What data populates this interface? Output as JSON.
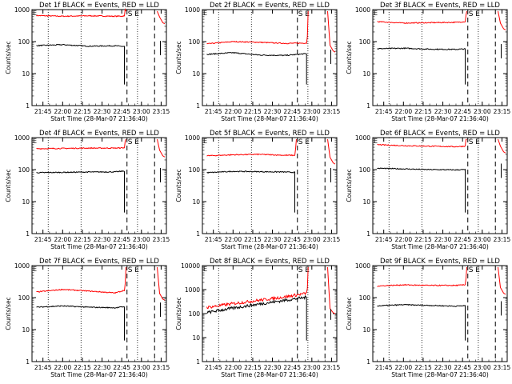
{
  "figure": {
    "xlabel": "Start Time (28-Mar-07 21:36:40)",
    "ylabel": "Counts/sec",
    "xticks": [
      "21:45",
      "22:00",
      "22:15",
      "22:30",
      "22:45",
      "23:00",
      "23:15"
    ],
    "yticks": [
      "1",
      "10",
      "100",
      "1000"
    ],
    "yticks_large": [
      "1",
      "10",
      "100",
      "1000",
      "10000"
    ],
    "markers": [
      "S",
      "E"
    ],
    "series_colors": {
      "events": "#000000",
      "lld": "#ff0000"
    }
  },
  "chart_data": [
    {
      "type": "line",
      "title": "Det 1f BLACK = Events, RED = LLD",
      "ylabel": "Counts/sec",
      "xlabel": "Start Time (28-Mar-07 21:36:40)",
      "scale": "log",
      "ylim": [
        1,
        1000
      ],
      "series": [
        {
          "name": "LLD",
          "x": [
            "21:40",
            "22:00",
            "22:20",
            "22:40",
            "22:47"
          ],
          "values": [
            650,
            620,
            640,
            620,
            630
          ]
        },
        {
          "name": "Events",
          "x": [
            "21:40",
            "22:00",
            "22:20",
            "22:40",
            "22:47"
          ],
          "values": [
            75,
            80,
            72,
            74,
            70
          ]
        }
      ]
    },
    {
      "type": "line",
      "title": "Det 2f BLACK = Events, RED = LLD",
      "ylabel": "Counts/sec",
      "xlabel": "Start Time (28-Mar-07 21:36:40)",
      "scale": "log",
      "ylim": [
        1,
        1000
      ],
      "series": [
        {
          "name": "LLD",
          "x": [
            "21:40",
            "22:00",
            "22:20",
            "22:40",
            "22:56"
          ],
          "values": [
            85,
            100,
            95,
            88,
            90
          ]
        },
        {
          "name": "Events",
          "x": [
            "21:40",
            "22:00",
            "22:20",
            "22:40",
            "22:56"
          ],
          "values": [
            40,
            45,
            38,
            37,
            42
          ]
        }
      ]
    },
    {
      "type": "line",
      "title": "Det 3f BLACK = Events, RED = LLD",
      "ylabel": "Counts/sec",
      "xlabel": "Start Time (28-Mar-07 21:36:40)",
      "scale": "log",
      "ylim": [
        1,
        1000
      ],
      "series": [
        {
          "name": "LLD",
          "x": [
            "21:40",
            "22:00",
            "22:20",
            "22:40",
            "22:47"
          ],
          "values": [
            420,
            380,
            390,
            400,
            420
          ]
        },
        {
          "name": "Events",
          "x": [
            "21:40",
            "22:00",
            "22:20",
            "22:40",
            "22:47"
          ],
          "values": [
            60,
            62,
            58,
            57,
            59
          ]
        }
      ]
    },
    {
      "type": "line",
      "title": "Det 4f BLACK = Events, RED = LLD",
      "ylabel": "Counts/sec",
      "xlabel": "Start Time (28-Mar-07 21:36:40)",
      "scale": "log",
      "ylim": [
        1,
        1000
      ],
      "series": [
        {
          "name": "LLD",
          "x": [
            "21:40",
            "22:00",
            "22:20",
            "22:40",
            "22:47"
          ],
          "values": [
            450,
            460,
            470,
            470,
            480
          ]
        },
        {
          "name": "Events",
          "x": [
            "21:40",
            "22:00",
            "22:20",
            "22:40",
            "22:47"
          ],
          "values": [
            80,
            82,
            84,
            85,
            90
          ]
        }
      ]
    },
    {
      "type": "line",
      "title": "Det 5f BLACK = Events, RED = LLD",
      "ylabel": "Counts/sec",
      "xlabel": "Start Time (28-Mar-07 21:36:40)",
      "scale": "log",
      "ylim": [
        1,
        1000
      ],
      "series": [
        {
          "name": "LLD",
          "x": [
            "21:40",
            "22:00",
            "22:20",
            "22:40",
            "22:47"
          ],
          "values": [
            270,
            290,
            300,
            280,
            280
          ]
        },
        {
          "name": "Events",
          "x": [
            "21:40",
            "22:00",
            "22:20",
            "22:40",
            "22:47"
          ],
          "values": [
            80,
            88,
            86,
            84,
            82
          ]
        }
      ]
    },
    {
      "type": "line",
      "title": "Det 6f BLACK = Events, RED = LLD",
      "ylabel": "Counts/sec",
      "xlabel": "Start Time (28-Mar-07 21:36:40)",
      "scale": "log",
      "ylim": [
        1,
        1000
      ],
      "series": [
        {
          "name": "LLD",
          "x": [
            "21:40",
            "22:00",
            "22:20",
            "22:40",
            "22:47"
          ],
          "values": [
            600,
            560,
            540,
            520,
            540
          ]
        },
        {
          "name": "Events",
          "x": [
            "21:40",
            "22:00",
            "22:20",
            "22:40",
            "22:47"
          ],
          "values": [
            110,
            105,
            100,
            98,
            100
          ]
        }
      ]
    },
    {
      "type": "line",
      "title": "Det 7f BLACK = Events, RED = LLD",
      "ylabel": "Counts/sec",
      "xlabel": "Start Time (28-Mar-07 21:36:40)",
      "scale": "log",
      "ylim": [
        1,
        1000
      ],
      "series": [
        {
          "name": "LLD",
          "x": [
            "21:40",
            "22:00",
            "22:20",
            "22:40",
            "22:47"
          ],
          "values": [
            150,
            180,
            160,
            140,
            170
          ]
        },
        {
          "name": "Events",
          "x": [
            "21:40",
            "22:00",
            "22:20",
            "22:40",
            "22:47"
          ],
          "values": [
            50,
            55,
            50,
            48,
            52
          ]
        }
      ]
    },
    {
      "type": "line",
      "title": "Det 8f BLACK = Events, RED = LLD",
      "ylabel": "Counts/sec",
      "xlabel": "Start Time (28-Mar-07 21:36:40)",
      "scale": "log",
      "ylim": [
        1,
        10000
      ],
      "series": [
        {
          "name": "LLD",
          "x": [
            "21:40",
            "22:00",
            "22:20",
            "22:40",
            "22:56"
          ],
          "values": [
            180,
            260,
            360,
            500,
            700
          ]
        },
        {
          "name": "Events",
          "x": [
            "21:40",
            "22:00",
            "22:20",
            "22:40",
            "22:56"
          ],
          "values": [
            110,
            170,
            250,
            360,
            480
          ]
        }
      ]
    },
    {
      "type": "line",
      "title": "Det 9f BLACK = Events, RED = LLD",
      "ylabel": "Counts/sec",
      "xlabel": "Start Time (28-Mar-07 21:36:40)",
      "scale": "log",
      "ylim": [
        1,
        1000
      ],
      "series": [
        {
          "name": "LLD",
          "x": [
            "21:40",
            "22:00",
            "22:20",
            "22:40",
            "22:47"
          ],
          "values": [
            230,
            250,
            240,
            240,
            250
          ]
        },
        {
          "name": "Events",
          "x": [
            "21:40",
            "22:00",
            "22:20",
            "22:40",
            "22:47"
          ],
          "values": [
            55,
            60,
            57,
            54,
            56
          ]
        }
      ]
    }
  ]
}
